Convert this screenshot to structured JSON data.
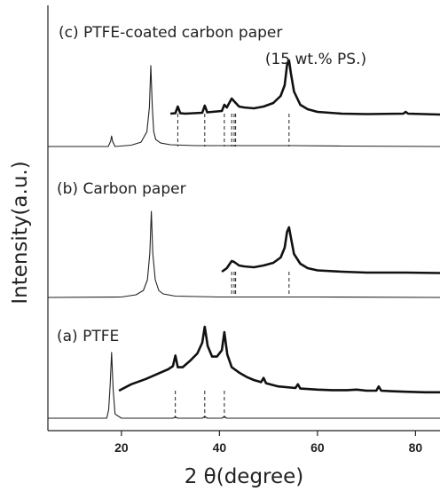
{
  "chart_data": {
    "type": "line",
    "xlabel": "2 θ(degree)",
    "ylabel": "Intensity(a.u.)",
    "xlim": [
      5,
      85
    ],
    "xticks": [
      20,
      40,
      60,
      80
    ],
    "y_ticks_shown": false,
    "grid": false,
    "panels": [
      {
        "label": "(c) PTFE-coated carbon paper",
        "sublabel": "(15 wt.% PS.)",
        "full_trace": {
          "x": [
            5,
            17.3,
            17.8,
            18.0,
            18.2,
            18.7,
            22,
            24,
            25.2,
            25.7,
            26.0,
            26.3,
            26.6,
            27.0,
            28.0,
            30,
            35,
            45,
            55,
            65,
            85
          ],
          "y": [
            0.0,
            0.0,
            0.06,
            0.12,
            0.06,
            0.0,
            0.015,
            0.05,
            0.17,
            0.45,
            0.93,
            0.45,
            0.17,
            0.08,
            0.04,
            0.02,
            0.01,
            0.01,
            0.01,
            0.005,
            0.0
          ]
        },
        "zoom_trace": {
          "x": [
            30,
            31,
            31.5,
            32,
            33,
            36.5,
            37,
            37.5,
            40.5,
            41,
            41.5,
            42,
            42.5,
            43,
            43.5,
            44,
            45,
            47,
            49,
            51,
            52.5,
            53.3,
            53.8,
            54.2,
            54.6,
            55.2,
            56.5,
            58,
            60,
            65,
            70,
            77.5,
            78,
            78.5,
            85
          ],
          "y": [
            0.0,
            0.005,
            0.08,
            0.005,
            0.0,
            0.01,
            0.09,
            0.015,
            0.03,
            0.1,
            0.07,
            0.12,
            0.17,
            0.14,
            0.11,
            0.08,
            0.07,
            0.06,
            0.08,
            0.12,
            0.2,
            0.32,
            0.55,
            0.6,
            0.45,
            0.25,
            0.1,
            0.05,
            0.02,
            0.0,
            -0.005,
            0.0,
            0.02,
            0.0,
            -0.01
          ]
        },
        "reference_lines": [
          31.5,
          37,
          41,
          42.5,
          43,
          43.3,
          54.2
        ]
      },
      {
        "label": "(b) Carbon paper",
        "full_trace": {
          "x": [
            5,
            20,
            23,
            24.5,
            25.3,
            25.8,
            26.1,
            26.4,
            26.9,
            27.6,
            28.5,
            31,
            40,
            60,
            85
          ],
          "y": [
            0.0,
            0.005,
            0.03,
            0.08,
            0.2,
            0.5,
            0.97,
            0.5,
            0.2,
            0.08,
            0.04,
            0.015,
            0.005,
            0.005,
            0.0
          ]
        },
        "zoom_trace": {
          "x": [
            40.5,
            41.5,
            42,
            42.5,
            43,
            43.5,
            44,
            45,
            47,
            49,
            51,
            52.5,
            53.3,
            53.8,
            54.2,
            54.6,
            55.2,
            56.5,
            58,
            60,
            65,
            70,
            78,
            85
          ],
          "y": [
            0.0,
            0.04,
            0.08,
            0.12,
            0.11,
            0.09,
            0.07,
            0.06,
            0.05,
            0.07,
            0.1,
            0.16,
            0.27,
            0.45,
            0.5,
            0.38,
            0.2,
            0.09,
            0.04,
            0.015,
            0.0,
            -0.01,
            -0.01,
            -0.015
          ]
        },
        "reference_lines": [
          42.5,
          43,
          43.3,
          54.2
        ]
      },
      {
        "label": "(a) PTFE",
        "full_trace": {
          "x": [
            5,
            17.0,
            17.4,
            17.7,
            18.0,
            18.3,
            18.7,
            20,
            25,
            30.5,
            31.0,
            31.5,
            33,
            36.5,
            37.0,
            37.5,
            40.5,
            41.0,
            41.5,
            45,
            50,
            60,
            85
          ],
          "y": [
            0.0,
            0.0,
            0.1,
            0.4,
            0.78,
            0.35,
            0.05,
            0.0,
            0.0,
            0.0,
            0.015,
            0.0,
            0.0,
            0.0,
            0.02,
            0.0,
            0.0,
            0.02,
            0.0,
            0.0,
            0.0,
            0.0,
            0.0
          ]
        },
        "zoom_trace": {
          "x": [
            19.5,
            22,
            25,
            28,
            29.5,
            30.5,
            31.0,
            31.5,
            32.5,
            34,
            35.5,
            36.5,
            37.0,
            37.6,
            38.5,
            39.5,
            40.5,
            41.0,
            41.6,
            42.5,
            44,
            45.5,
            47,
            48.5,
            49,
            49.5,
            52,
            55.5,
            56,
            56.5,
            60,
            63,
            66,
            68,
            70,
            72,
            72.5,
            73,
            75,
            78,
            82,
            85
          ],
          "y": [
            0.0,
            0.06,
            0.11,
            0.17,
            0.2,
            0.23,
            0.33,
            0.22,
            0.22,
            0.28,
            0.35,
            0.45,
            0.6,
            0.42,
            0.32,
            0.32,
            0.38,
            0.55,
            0.34,
            0.22,
            0.17,
            0.13,
            0.1,
            0.08,
            0.12,
            0.07,
            0.04,
            0.025,
            0.06,
            0.02,
            0.01,
            0.005,
            0.005,
            0.01,
            0.0,
            0.0,
            0.04,
            0.0,
            -0.005,
            -0.01,
            -0.015,
            -0.015
          ]
        },
        "reference_lines": [
          31,
          37,
          41
        ]
      }
    ]
  }
}
